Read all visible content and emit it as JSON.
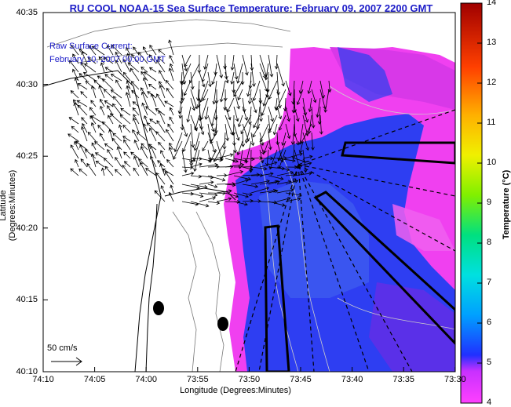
{
  "title": "RU COOL  NOAA-15  Sea Surface Temperature:  February 09, 2007 2200 GMT",
  "annotation": {
    "line1": "Raw Surface Current:",
    "line2": "February 10, 2007 00:00 GMT"
  },
  "scale_label": "50 cm/s",
  "axes": {
    "xlabel": "Longitude (Degrees:Minutes)",
    "ylabel": "Latitude (Degrees:Minutes)",
    "xticks": [
      "74:10",
      "74:05",
      "74:00",
      "73:55",
      "73:50",
      "73:45",
      "73:40",
      "73:35",
      "73:30"
    ],
    "yticks": [
      "40:35",
      "40:30",
      "40:25",
      "40:20",
      "40:15",
      "40:10"
    ]
  },
  "colorbar": {
    "label": "Temperature (°C)",
    "ticks": [
      "14",
      "13",
      "12",
      "11",
      "10",
      "9",
      "8",
      "7",
      "6",
      "5",
      "4"
    ],
    "min": 4,
    "max": 14
  },
  "colors": {
    "title": "#1c1cc8",
    "warm": "#ff40ff",
    "cool": "#2a3cf0",
    "magenta": "#e020e0"
  }
}
